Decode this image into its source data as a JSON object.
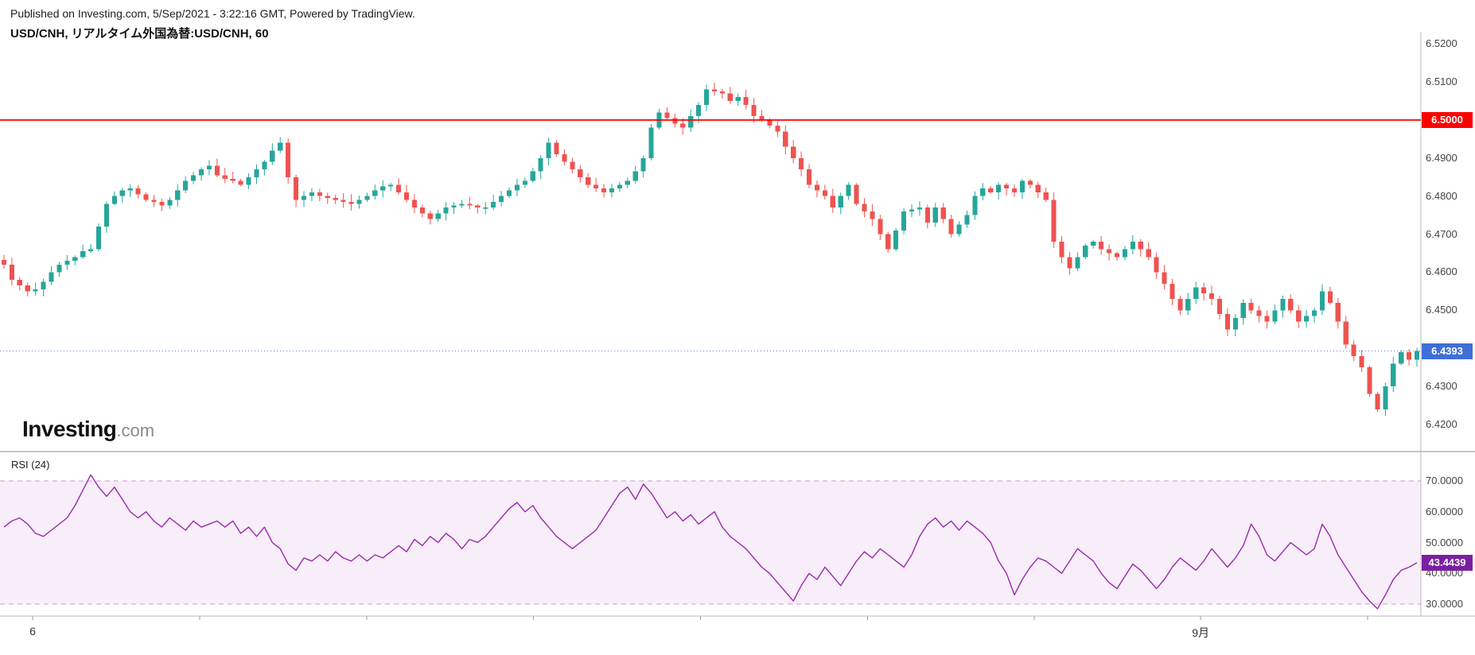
{
  "header": {
    "publish_line": "Published on Investing.com, 5/Sep/2021 - 3:22:16 GMT, Powered by TradingView.",
    "chart_title": "USD/CNH, リアルタイム外国為替:USD/CNH, 60"
  },
  "watermark": {
    "brand_bold": "Investing",
    "brand_suffix": ".com"
  },
  "chart_data": {
    "type": "candlestick",
    "symbol": "USD/CNH",
    "interval_minutes": "60",
    "price_axis": {
      "min": 6.4129,
      "max": 6.5215,
      "ticks": [
        "6.5200",
        "6.5100",
        "6.5000",
        "6.4900",
        "6.4800",
        "6.4700",
        "6.4600",
        "6.4500",
        "6.4300",
        "6.4200"
      ]
    },
    "levels": {
      "red_line": 6.5,
      "red_line_label": "6.5000",
      "last_price": 6.4393,
      "last_price_label": "6.4393"
    },
    "time_axis": {
      "labels": [
        {
          "text": "6",
          "xf": 0.023
        },
        {
          "text": "9月",
          "xf": 0.845
        }
      ],
      "minor_tick_xfs": [
        0.023,
        0.1405,
        0.258,
        0.3755,
        0.493,
        0.6105,
        0.728,
        0.845,
        0.9625
      ]
    },
    "closes": [
      6.462,
      6.458,
      6.4565,
      6.455,
      6.4555,
      6.4575,
      6.46,
      6.462,
      6.463,
      6.464,
      6.4655,
      6.466,
      6.472,
      6.478,
      6.48,
      6.4815,
      6.482,
      6.4805,
      6.479,
      6.4785,
      6.4775,
      6.479,
      6.4815,
      6.484,
      6.4855,
      6.487,
      6.488,
      6.4855,
      6.4845,
      6.484,
      6.483,
      6.485,
      6.487,
      6.489,
      6.492,
      6.494,
      6.485,
      6.479,
      6.48,
      6.481,
      6.48,
      6.4795,
      6.479,
      6.4785,
      6.478,
      6.479,
      6.48,
      6.4815,
      6.4825,
      6.483,
      6.481,
      6.479,
      6.477,
      6.4755,
      6.474,
      6.4755,
      6.477,
      6.4775,
      6.478,
      6.4775,
      6.477,
      6.477,
      6.4785,
      6.48,
      6.4815,
      6.483,
      6.484,
      6.4865,
      6.49,
      6.494,
      6.491,
      6.489,
      6.487,
      6.485,
      6.483,
      6.482,
      6.481,
      6.482,
      6.483,
      6.484,
      6.4865,
      6.49,
      6.498,
      6.502,
      6.5005,
      6.499,
      6.498,
      6.501,
      6.504,
      6.508,
      6.5075,
      6.507,
      6.505,
      6.506,
      6.504,
      6.501,
      6.5,
      6.4985,
      6.497,
      6.493,
      6.49,
      6.487,
      6.483,
      6.4815,
      6.48,
      6.477,
      6.48,
      6.483,
      6.478,
      6.476,
      6.474,
      6.47,
      6.466,
      6.471,
      6.476,
      6.4765,
      6.477,
      6.473,
      6.477,
      6.474,
      6.47,
      6.4725,
      6.475,
      6.48,
      6.482,
      6.481,
      6.483,
      6.482,
      6.481,
      6.484,
      6.483,
      6.481,
      6.479,
      6.468,
      6.464,
      6.461,
      6.464,
      6.467,
      6.468,
      6.466,
      6.465,
      6.464,
      6.466,
      6.468,
      6.466,
      6.464,
      6.46,
      6.457,
      6.453,
      6.45,
      6.453,
      6.456,
      6.4545,
      6.453,
      6.449,
      6.445,
      6.448,
      6.452,
      6.45,
      6.4485,
      6.447,
      6.45,
      6.453,
      6.45,
      6.447,
      6.4485,
      6.45,
      6.455,
      6.452,
      6.447,
      6.441,
      6.438,
      6.435,
      6.428,
      6.424,
      6.43,
      6.436,
      6.439,
      6.437,
      6.4393
    ],
    "rsi": {
      "period_label": "RSI (24)",
      "value": 43.4439,
      "value_label": "43.4439",
      "upper": 70,
      "lower": 30,
      "ticks": [
        "70.0000",
        "60.0000",
        "50.0000",
        "40.0000",
        "30.0000"
      ],
      "values": [
        55,
        57,
        58,
        56,
        53,
        52,
        54,
        56,
        58,
        62,
        67,
        72,
        68,
        65,
        68,
        64,
        60,
        58,
        60,
        57,
        55,
        58,
        56,
        54,
        57,
        55,
        56,
        57,
        55,
        57,
        53,
        55,
        52,
        55,
        50,
        48,
        43,
        41,
        45,
        44,
        46,
        44,
        47,
        45,
        44,
        46,
        44,
        46,
        45,
        47,
        49,
        47,
        51,
        49,
        52,
        50,
        53,
        51,
        48,
        51,
        50,
        52,
        55,
        58,
        61,
        63,
        60,
        62,
        58,
        55,
        52,
        50,
        48,
        50,
        52,
        54,
        58,
        62,
        66,
        68,
        64,
        69,
        66,
        62,
        58,
        60,
        57,
        59,
        56,
        58,
        60,
        55,
        52,
        50,
        48,
        45,
        42,
        40,
        37,
        34,
        31,
        36,
        40,
        38,
        42,
        39,
        36,
        40,
        44,
        47,
        45,
        48,
        46,
        44,
        42,
        46,
        52,
        56,
        58,
        55,
        57,
        54,
        57,
        55,
        53,
        50,
        44,
        40,
        33,
        38,
        42,
        45,
        44,
        42,
        40,
        44,
        48,
        46,
        44,
        40,
        37,
        35,
        39,
        43,
        41,
        38,
        35,
        38,
        42,
        45,
        43,
        41,
        44,
        48,
        45,
        42,
        45,
        49,
        56,
        52,
        46,
        44,
        47,
        50,
        48,
        46,
        48,
        56,
        52,
        46,
        42,
        38,
        34,
        31,
        28.5,
        33,
        38,
        41,
        42,
        43.4439
      ]
    },
    "colors": {
      "up": "#26a69a",
      "down": "#ef5350",
      "red_line": "#fe0000",
      "last_line": "#4a7bd5",
      "last_badge_bg": "#3e6fd8",
      "rsi_line": "#9c27b0",
      "rsi_fill": "rgba(156,39,176,0.08)",
      "rsi_band_border": "#c79bd2",
      "rsi_badge_bg": "#7b1fa2"
    }
  }
}
